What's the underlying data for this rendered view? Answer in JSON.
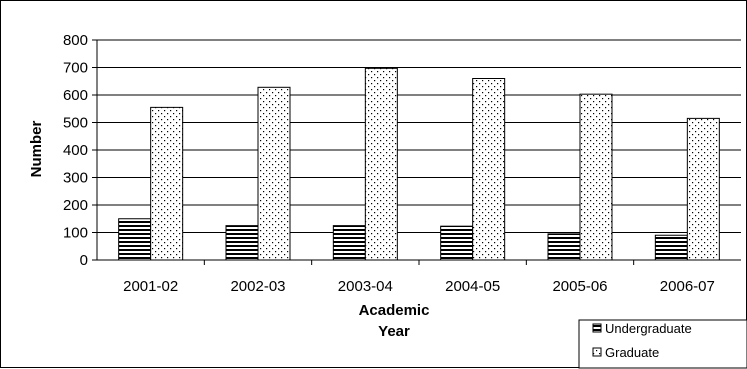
{
  "chart_data": {
    "type": "bar",
    "title": "",
    "xlabel": "Academic Year",
    "xlabel_lines": [
      "Academic",
      "Year"
    ],
    "ylabel": "Number",
    "ylim": [
      0,
      800
    ],
    "yticks": [
      0,
      100,
      200,
      300,
      400,
      500,
      600,
      700,
      800
    ],
    "grid": true,
    "legend": "bottom-right",
    "categories": [
      "2001-02",
      "2002-03",
      "2003-04",
      "2004-05",
      "2005-06",
      "2006-07"
    ],
    "series": [
      {
        "name": "Undergraduate",
        "pattern": "horizontal-stripes",
        "color": "#000000",
        "values": [
          150,
          125,
          125,
          123,
          95,
          90
        ]
      },
      {
        "name": "Graduate",
        "pattern": "dots",
        "color": "#000000",
        "values": [
          555,
          628,
          697,
          660,
          603,
          515
        ]
      }
    ]
  }
}
